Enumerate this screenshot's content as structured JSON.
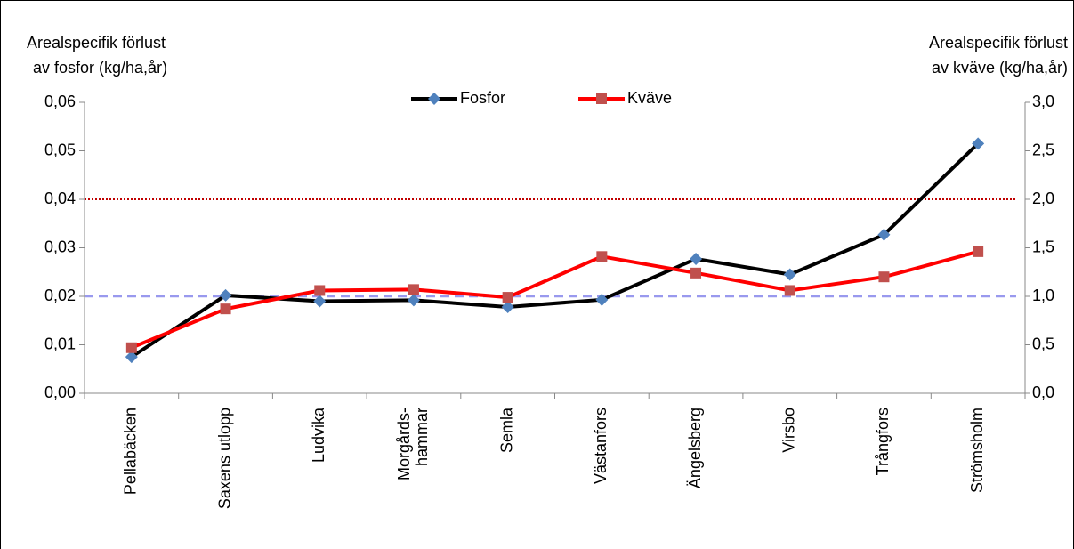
{
  "chart_data": {
    "type": "line",
    "ylabel": [
      "Arealspecifik förlust",
      "av fosfor (kg/ha,år)"
    ],
    "y2label": [
      "Arealspecifik förlust",
      "av kväve (kg/ha,år)"
    ],
    "categories": [
      "Pellabäcken",
      "Saxens utlopp",
      "Ludvika",
      "Morgårds-\nhammar",
      "Semla",
      "Västanfors",
      "Ängelsberg",
      "Virsbo",
      "Trångfors",
      "Strömsholm"
    ],
    "series": [
      {
        "name": "Fosfor",
        "color": "#000000",
        "marker": "diamond",
        "marker_color": "#4f81bd",
        "values": [
          0.0075,
          0.0202,
          0.019,
          0.0192,
          0.0178,
          0.0193,
          0.0277,
          0.0245,
          0.0327,
          0.0515
        ]
      },
      {
        "name": "Kväve",
        "color": "#ff0000",
        "marker": "square",
        "marker_color": "#c0504d",
        "axis": "y2",
        "values": [
          0.47,
          0.87,
          1.06,
          1.07,
          0.99,
          1.41,
          1.24,
          1.06,
          1.2,
          1.46
        ]
      }
    ],
    "hlines": [
      {
        "value": 0.04,
        "color": "#c00000",
        "style": "dotted"
      },
      {
        "value": 0.02,
        "color": "#9999ee",
        "style": "dashed"
      }
    ],
    "ylim": [
      0,
      0.06
    ],
    "yticks": [
      {
        "value": 0,
        "label": "0,00"
      },
      {
        "value": 0.01,
        "label": "0,01"
      },
      {
        "value": 0.02,
        "label": "0,02"
      },
      {
        "value": 0.03,
        "label": "0,03"
      },
      {
        "value": 0.04,
        "label": "0,04"
      },
      {
        "value": 0.05,
        "label": "0,05"
      },
      {
        "value": 0.06,
        "label": "0,06"
      }
    ],
    "y2lim": [
      0,
      3
    ],
    "y2ticks": [
      {
        "value": 0,
        "label": "0,0"
      },
      {
        "value": 0.5,
        "label": "0,5"
      },
      {
        "value": 1,
        "label": "1,0"
      },
      {
        "value": 1.5,
        "label": "1,5"
      },
      {
        "value": 2,
        "label": "2,0"
      },
      {
        "value": 2.5,
        "label": "2,5"
      },
      {
        "value": 3,
        "label": "3,0"
      }
    ],
    "legend": "top"
  }
}
